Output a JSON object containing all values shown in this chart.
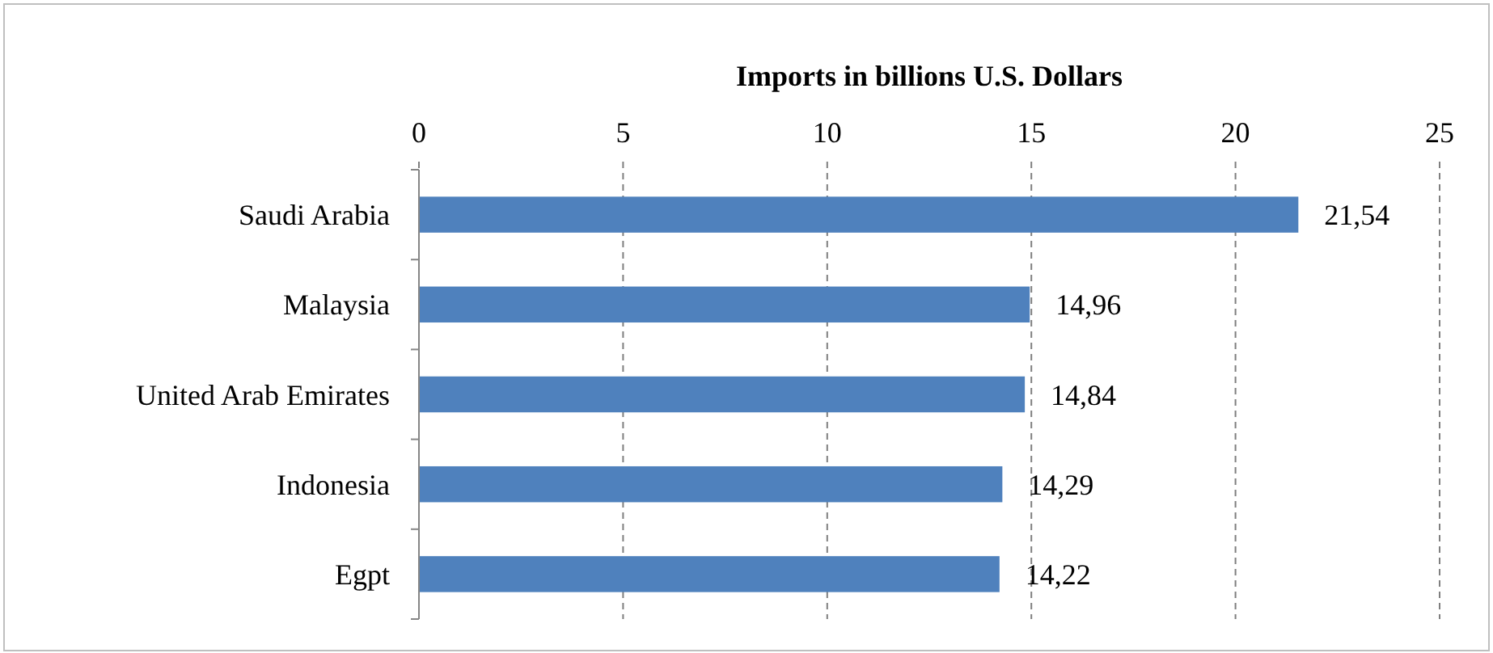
{
  "chart_data": {
    "type": "bar",
    "orientation": "horizontal",
    "xlabel": "Imports in billions U.S. Dollars",
    "categories": [
      "Saudi Arabia",
      "Malaysia",
      "United Arab Emirates",
      "Indonesia",
      "Egpt"
    ],
    "values": [
      21.54,
      14.96,
      14.84,
      14.29,
      14.22
    ],
    "value_labels": [
      "21,54",
      "14,96",
      "14,84",
      "14,29",
      "14,22"
    ],
    "color": "#4f81bd",
    "xlim": [
      0,
      25
    ],
    "xticks": [
      0,
      5,
      10,
      15,
      20,
      25
    ],
    "grid": "x"
  }
}
